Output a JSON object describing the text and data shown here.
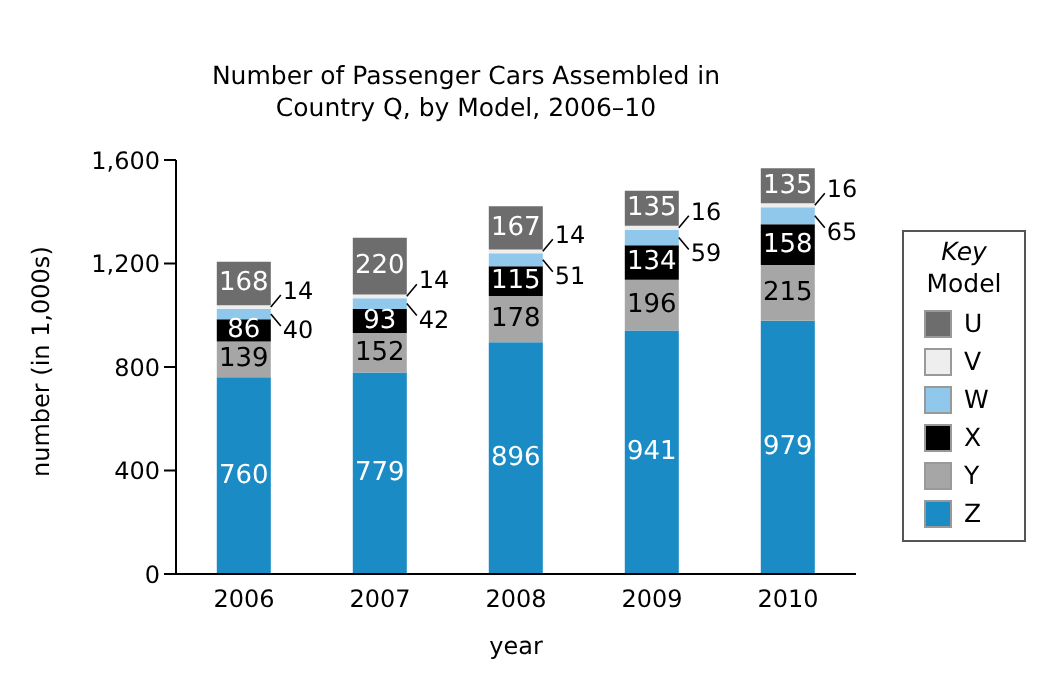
{
  "chart_data": {
    "type": "bar",
    "title": "Number of Passenger Cars Assembled in Country Q, by Model, 2006–10",
    "xlabel": "year",
    "ylabel": "number (in 1,000s)",
    "legend_title": "Key Model",
    "categories": [
      "2006",
      "2007",
      "2008",
      "2009",
      "2010"
    ],
    "stacked": true,
    "data_labels": true,
    "legend": "right",
    "grid": false,
    "series": [
      {
        "name": "Z",
        "color": "#1a8bc4",
        "values": [
          760,
          779,
          896,
          941,
          979
        ]
      },
      {
        "name": "Y",
        "color": "#a6a6a6",
        "values": [
          139,
          152,
          178,
          196,
          215
        ]
      },
      {
        "name": "X",
        "color": "#000000",
        "values": [
          86,
          93,
          115,
          134,
          158
        ]
      },
      {
        "name": "W",
        "color": "#8fc8ea",
        "values": [
          40,
          42,
          51,
          59,
          65
        ]
      },
      {
        "name": "V",
        "color": "#eeeeee",
        "values": [
          14,
          14,
          14,
          16,
          16
        ]
      },
      {
        "name": "U",
        "color": "#6d6d6d",
        "values": [
          168,
          220,
          167,
          135,
          135
        ]
      }
    ],
    "ylim": [
      0,
      1600
    ],
    "yticks": [
      0,
      {
        "value": 400,
        "label": "400"
      },
      {
        "value": 800,
        "label": "800"
      },
      {
        "value": 1200,
        "label": "1,200"
      },
      {
        "value": 1600,
        "label": "1,600"
      }
    ]
  }
}
